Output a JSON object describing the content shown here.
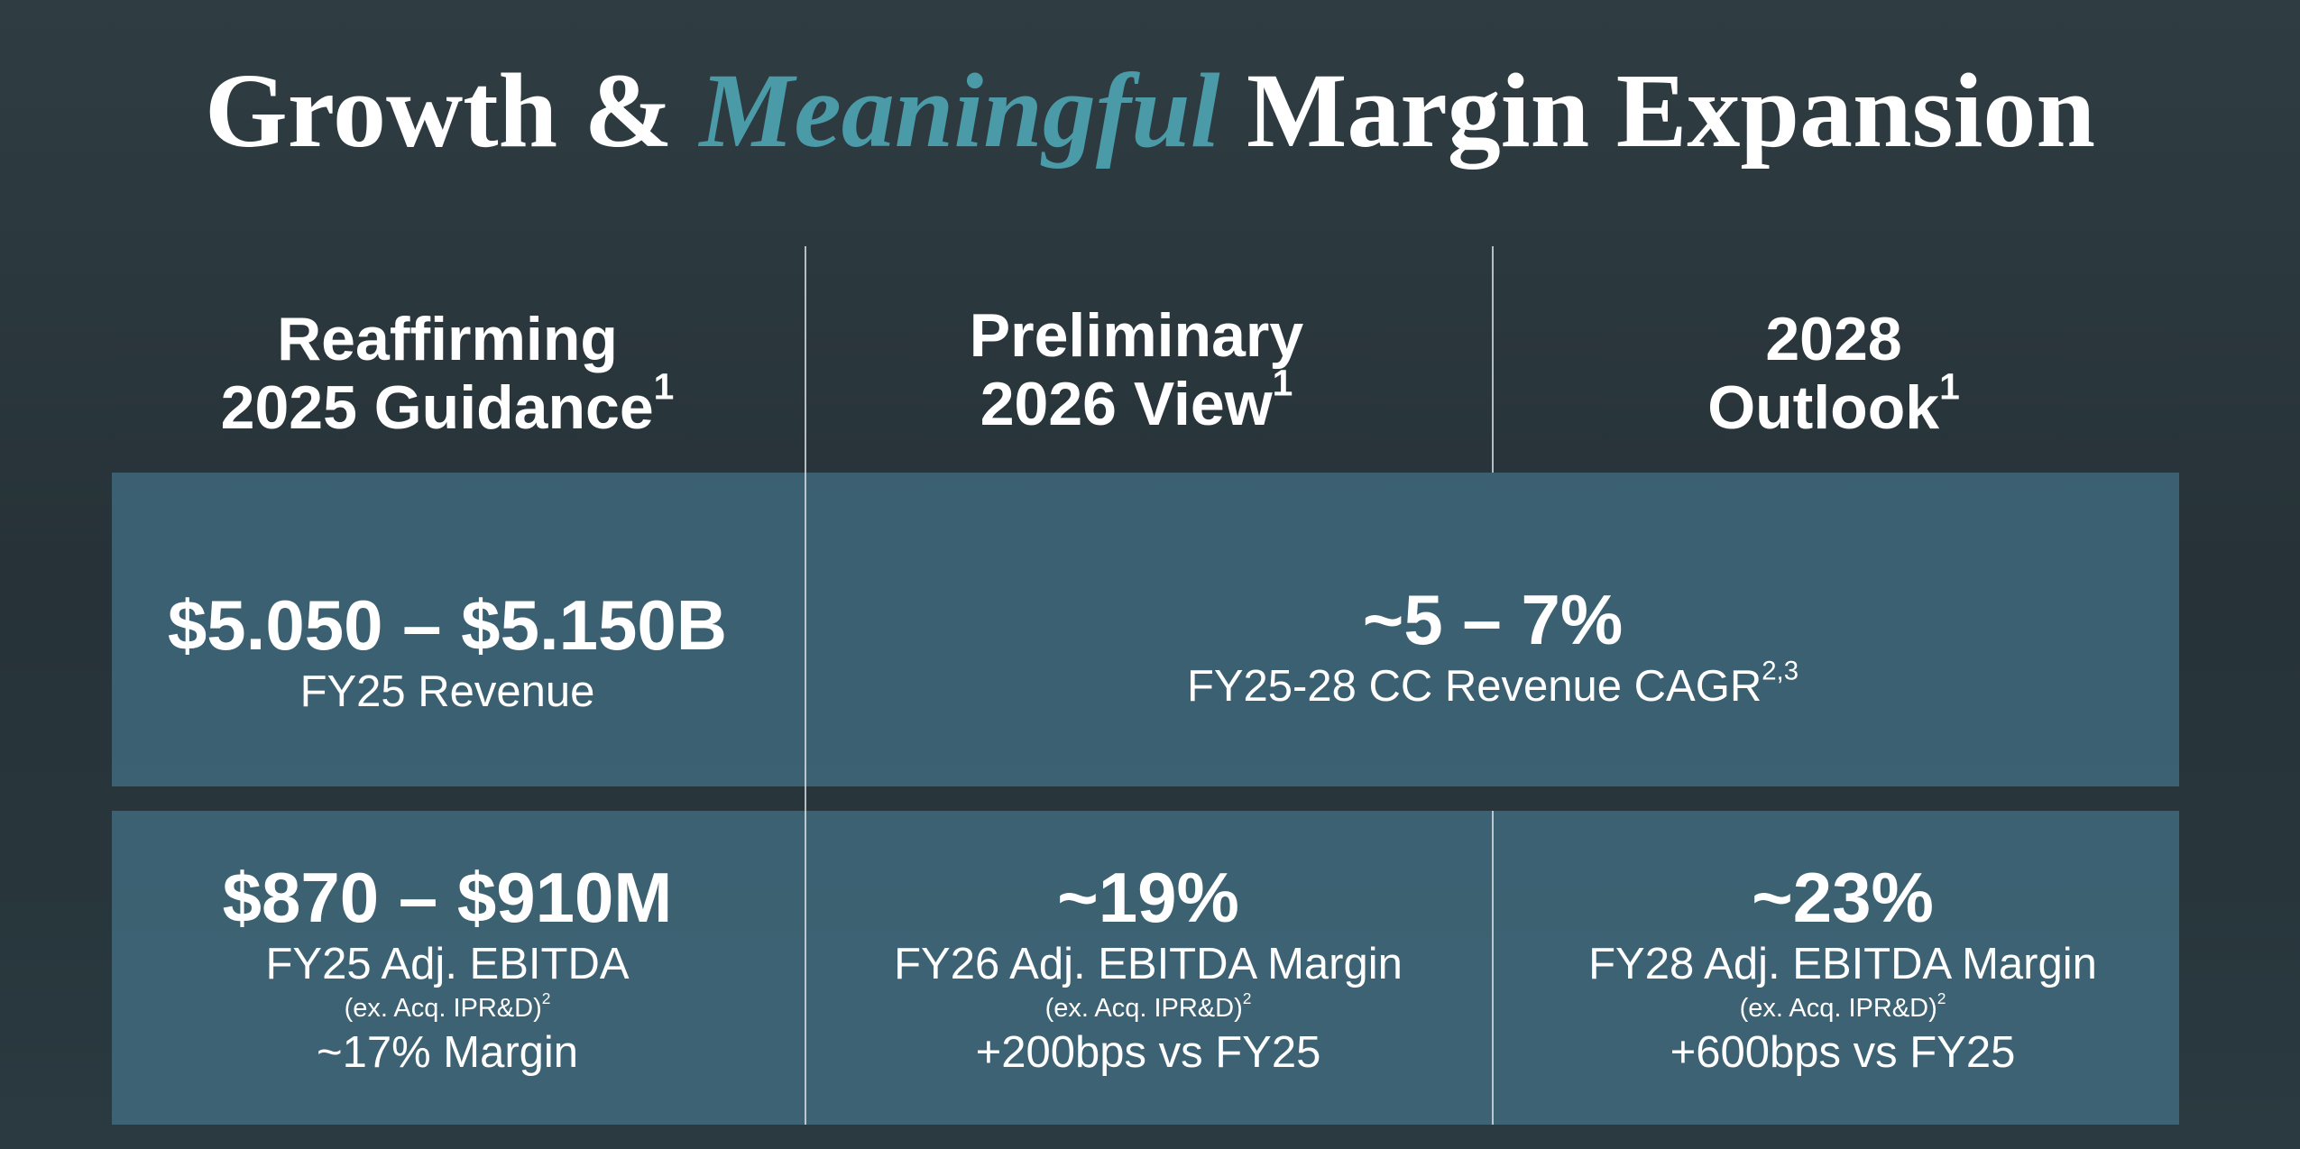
{
  "title": {
    "part1": "Growth &",
    "part2": "Meaningful",
    "part3": "Margin Expansion"
  },
  "columns": [
    {
      "line1": "Reaffirming",
      "line2": "2025 Guidance",
      "sup": "1"
    },
    {
      "line1": "Preliminary",
      "line2": "2026 View",
      "sup": "1"
    },
    {
      "line1": "2028",
      "line2": "Outlook",
      "sup": "1"
    }
  ],
  "revenue": [
    {
      "value": "$5.050 – $5.150B",
      "label": "FY25 Revenue"
    },
    {
      "value": "~5 – 7%",
      "label": "FY25-28 CC Revenue CAGR",
      "sup": "2,3"
    }
  ],
  "ebitda": [
    {
      "value": "$870 – $910M",
      "label": "FY25 Adj. EBITDA",
      "note": "(ex. Acq. IPR&D)",
      "note_sup": "2",
      "extra": "~17% Margin"
    },
    {
      "value": "~19%",
      "label": "FY26 Adj. EBITDA Margin",
      "note": "(ex. Acq. IPR&D)",
      "note_sup": "2",
      "extra": "+200bps vs FY25"
    },
    {
      "value": "~23%",
      "label": "FY28 Adj. EBITDA Margin",
      "note": "(ex. Acq. IPR&D)",
      "note_sup": "2",
      "extra": "+600bps vs FY25"
    }
  ]
}
